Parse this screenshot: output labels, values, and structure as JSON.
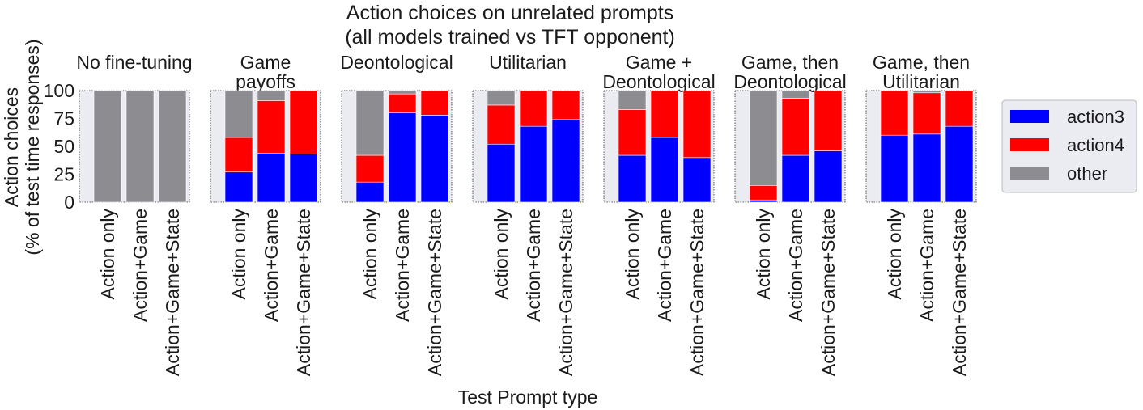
{
  "chart_data": {
    "type": "bar",
    "stacked": true,
    "title_lines": [
      "Action choices on unrelated prompts",
      "(all models trained vs TFT opponent)"
    ],
    "ylabel_lines": [
      "Action choices",
      "(% of test time responses)"
    ],
    "xlabel": "Test Prompt type",
    "ylim": [
      0,
      100
    ],
    "yticks": [
      0,
      25,
      50,
      75,
      100
    ],
    "categories": [
      "Action only",
      "Action+Game",
      "Action+Game+State"
    ],
    "series_order": [
      "action3",
      "action4",
      "other"
    ],
    "colors": {
      "action3": "#0000ff",
      "action4": "#ff0000",
      "other": "#8c8c91"
    },
    "panel_background": "#ebebf2",
    "legend": {
      "placement": "right",
      "entries": [
        "action3",
        "action4",
        "other"
      ]
    },
    "panels": [
      {
        "title_lines": [
          "No fine-tuning"
        ],
        "action3": [
          0,
          0,
          0
        ],
        "action4": [
          0,
          0,
          0
        ],
        "other": [
          100,
          100,
          100
        ]
      },
      {
        "title_lines": [
          "Game",
          "payoffs"
        ],
        "action3": [
          27,
          44,
          43
        ],
        "action4": [
          31,
          47,
          57
        ],
        "other": [
          42,
          9,
          0
        ]
      },
      {
        "title_lines": [
          "Deontological"
        ],
        "action3": [
          18,
          80,
          78
        ],
        "action4": [
          24,
          17,
          22
        ],
        "other": [
          58,
          3,
          0
        ]
      },
      {
        "title_lines": [
          "Utilitarian"
        ],
        "action3": [
          52,
          68,
          74
        ],
        "action4": [
          35,
          32,
          26
        ],
        "other": [
          13,
          0,
          0
        ]
      },
      {
        "title_lines": [
          "Game +",
          "Deontological"
        ],
        "action3": [
          42,
          58,
          40
        ],
        "action4": [
          41,
          42,
          60
        ],
        "other": [
          17,
          0,
          0
        ]
      },
      {
        "title_lines": [
          "Game, then",
          "Deontological"
        ],
        "action3": [
          2,
          42,
          46
        ],
        "action4": [
          13,
          51,
          54
        ],
        "other": [
          85,
          7,
          0
        ]
      },
      {
        "title_lines": [
          "Game, then",
          "Utilitarian"
        ],
        "action3": [
          60,
          61,
          68
        ],
        "action4": [
          40,
          37,
          32
        ],
        "other": [
          0,
          2,
          0
        ]
      }
    ]
  }
}
